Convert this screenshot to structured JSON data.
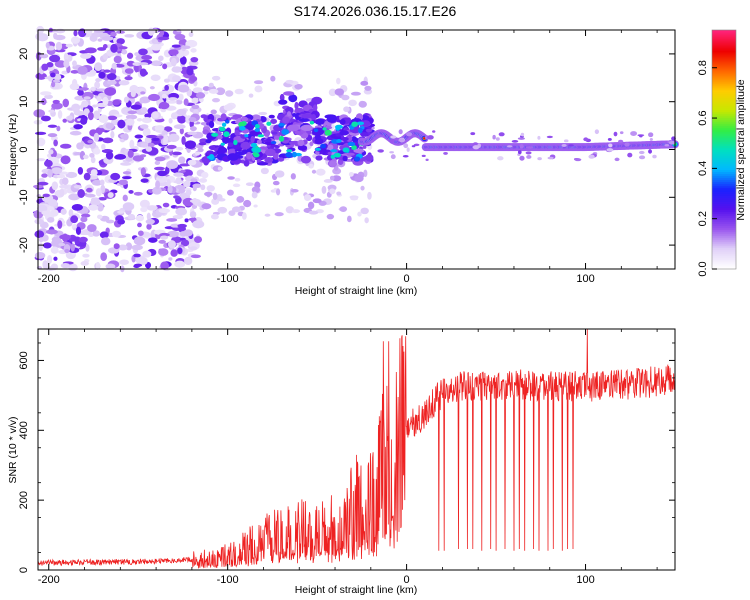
{
  "figure_title": "S174.2026.036.15.17.E26",
  "colors": {
    "snr_line": "#ee2222",
    "axis": "#000000",
    "colormap": [
      "#ffffff",
      "#e0d0f8",
      "#9955ee",
      "#5511ee",
      "#1a22ff",
      "#00b8ff",
      "#00e0c0",
      "#33ee44",
      "#c8e800",
      "#ffcc00",
      "#ff6600",
      "#ee0000",
      "#ff2277"
    ]
  },
  "chart_data": [
    {
      "type": "heatmap",
      "title": "",
      "xlabel": "Height of straight line (km)",
      "ylabel": "Frequency (Hz)",
      "xlim": [
        -206,
        150
      ],
      "ylim": [
        -25,
        25
      ],
      "xticks": [
        "-200",
        "-100",
        "0",
        "100"
      ],
      "xtick_values": [
        -200,
        -100,
        0,
        100
      ],
      "yticks": [
        "-20",
        "-10",
        "0",
        "10",
        "20"
      ],
      "ytick_values": [
        -20,
        -10,
        0,
        10,
        20
      ],
      "colorbar": {
        "label": "Normalized spectral amplitude",
        "range": [
          0,
          0.95
        ],
        "ticks": [
          "0.0",
          "0.2",
          "0.4",
          "0.6",
          "0.8"
        ],
        "tick_values": [
          0,
          0.2,
          0.4,
          0.6,
          0.8
        ]
      },
      "description_of_signal": {
        "ridge_start_km": -20,
        "ridge_freq_hz_at_start": 2.5,
        "ridge_freq_hz_after_10km": 0.5,
        "ridge_end_freq_hz": 1.0,
        "scattered_noise_km": [
          -206,
          -20
        ]
      }
    },
    {
      "type": "line",
      "title": "",
      "xlabel": "Height of straight line (km)",
      "ylabel": "SNR (10 * v/v)",
      "xlim": [
        -206,
        150
      ],
      "ylim": [
        0,
        690
      ],
      "xticks": [
        "-200",
        "-100",
        "0",
        "100"
      ],
      "xtick_values": [
        -200,
        -100,
        0,
        100
      ],
      "yticks": [
        "0",
        "200",
        "400",
        "600"
      ],
      "ytick_values": [
        0,
        200,
        400,
        600
      ],
      "series": [
        {
          "name": "SNR",
          "envelope_x": [
            -206,
            -180,
            -150,
            -130,
            -120,
            -110,
            -100,
            -90,
            -80,
            -70,
            -60,
            -50,
            -40,
            -30,
            -20,
            -15,
            -10,
            -5,
            0,
            5,
            10,
            15,
            20,
            25,
            30,
            40,
            60,
            80,
            100,
            120,
            140,
            150
          ],
          "envelope_y": [
            20,
            22,
            24,
            27,
            30,
            35,
            45,
            65,
            90,
            105,
            115,
            120,
            130,
            180,
            230,
            280,
            330,
            370,
            420,
            420,
            440,
            480,
            510,
            520,
            525,
            530,
            530,
            525,
            525,
            530,
            540,
            550
          ],
          "spikes_x": [
            -13,
            -10
          ],
          "spikes_y": [
            655,
            655
          ],
          "spike_101_x": 101,
          "spike_101_y": 690,
          "dips_x": [
            18,
            21,
            29,
            34,
            37,
            42,
            47,
            50,
            55,
            60,
            63,
            66,
            71,
            74,
            79,
            82,
            87,
            90,
            93
          ],
          "dips_y": [
            55,
            55,
            60,
            60,
            60,
            55,
            60,
            55,
            60,
            55,
            60,
            55,
            60,
            55,
            55,
            60,
            55,
            60,
            60
          ]
        }
      ]
    }
  ]
}
